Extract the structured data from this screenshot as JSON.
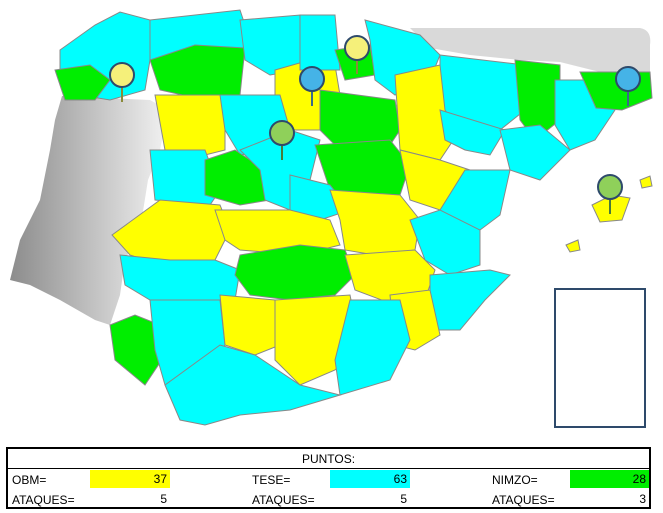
{
  "colors": {
    "obm": "#ffff00",
    "tese": "#00ffff",
    "nimzo": "#00ee00",
    "portugal": "#aaaaaa",
    "france": "#d9d9d9",
    "border": "#888888"
  },
  "markers": [
    {
      "name": "yellow-pin",
      "color": "#f5f07a"
    },
    {
      "name": "yellow-pin",
      "color": "#f5f07a"
    },
    {
      "name": "blue-pin",
      "color": "#45b3e7"
    },
    {
      "name": "green-pin",
      "color": "#8fd05a"
    },
    {
      "name": "blue-pin",
      "color": "#45b3e7"
    },
    {
      "name": "green-pin",
      "color": "#8fd05a"
    }
  ],
  "scoreboard": {
    "title": "PUNTOS:",
    "players": [
      {
        "label": "OBM=",
        "points": "37",
        "attacks_label": "ATAQUES=",
        "attacks": "5"
      },
      {
        "label": "TESE=",
        "points": "63",
        "attacks_label": "ATAQUES=",
        "attacks": "5"
      },
      {
        "label": "NIMZO=",
        "points": "28",
        "attacks_label": "ATAQUES=",
        "attacks": "3"
      }
    ]
  }
}
